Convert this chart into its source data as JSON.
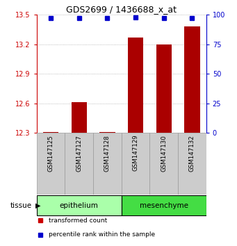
{
  "title": "GDS2699 / 1436688_x_at",
  "samples": [
    "GSM147125",
    "GSM147127",
    "GSM147128",
    "GSM147129",
    "GSM147130",
    "GSM147132"
  ],
  "transformed_counts": [
    12.31,
    12.61,
    12.31,
    13.27,
    13.2,
    13.38
  ],
  "percentile_ranks": [
    97,
    97,
    97,
    98,
    97,
    97
  ],
  "ylim_left": [
    12.3,
    13.5
  ],
  "yticks_left": [
    12.3,
    12.6,
    12.9,
    13.2,
    13.5
  ],
  "ylim_right": [
    0,
    100
  ],
  "yticks_right": [
    0,
    25,
    50,
    75,
    100
  ],
  "bar_color": "#aa0000",
  "dot_color": "#0000cc",
  "groups": [
    {
      "name": "epithelium",
      "indices": [
        0,
        1,
        2
      ],
      "color": "#aaffaa"
    },
    {
      "name": "mesenchyme",
      "indices": [
        3,
        4,
        5
      ],
      "color": "#44dd44"
    }
  ],
  "group_label": "tissue",
  "legend_items": [
    {
      "label": "transformed count",
      "color": "#cc0000"
    },
    {
      "label": "percentile rank within the sample",
      "color": "#0000cc"
    }
  ],
  "left_axis_color": "#cc0000",
  "right_axis_color": "#0000cc",
  "background_color": "#ffffff",
  "grid_color": "#aaaaaa",
  "sample_box_color": "#cccccc",
  "sample_box_edge": "#999999"
}
